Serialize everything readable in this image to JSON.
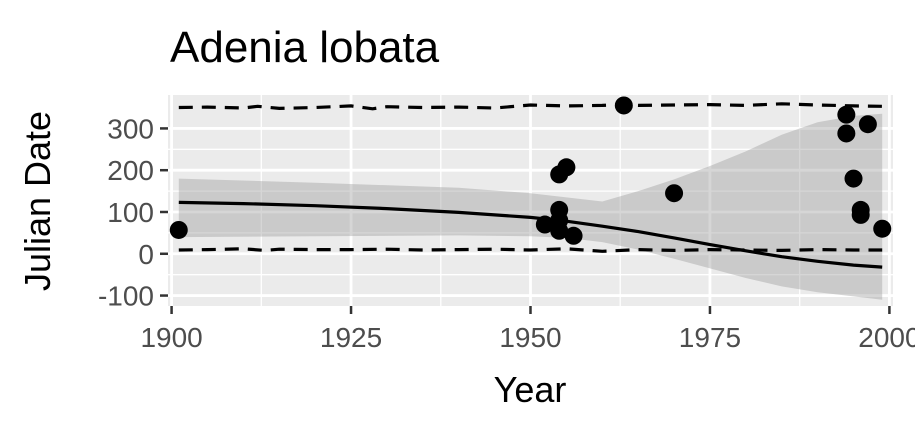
{
  "chart_data": {
    "type": "scatter",
    "title": "Adenia lobata",
    "xlabel": "Year",
    "ylabel": "Julian Date",
    "xlim": [
      1899.5,
      2000.5
    ],
    "ylim": [
      -125,
      380
    ],
    "xticks": [
      1900,
      1925,
      1950,
      1975,
      2000
    ],
    "yticks": [
      -100,
      0,
      100,
      200,
      300
    ],
    "x_tick_labels": [
      "1900",
      "1925",
      "1950",
      "1975",
      "2000"
    ],
    "y_tick_labels": [
      "-100",
      "0",
      "100",
      "200",
      "300"
    ],
    "grid": true,
    "points": [
      {
        "x": 1901,
        "y": 57
      },
      {
        "x": 1952,
        "y": 70
      },
      {
        "x": 1954,
        "y": 55
      },
      {
        "x": 1954,
        "y": 80
      },
      {
        "x": 1954,
        "y": 105
      },
      {
        "x": 1954,
        "y": 190
      },
      {
        "x": 1955,
        "y": 207
      },
      {
        "x": 1956,
        "y": 43
      },
      {
        "x": 1963,
        "y": 355
      },
      {
        "x": 1970,
        "y": 145
      },
      {
        "x": 1994,
        "y": 288
      },
      {
        "x": 1994,
        "y": 333
      },
      {
        "x": 1995,
        "y": 180
      },
      {
        "x": 1996,
        "y": 93
      },
      {
        "x": 1996,
        "y": 105
      },
      {
        "x": 1997,
        "y": 310
      },
      {
        "x": 1999,
        "y": 60
      }
    ],
    "trend_line": {
      "x": [
        1901,
        1910,
        1920,
        1930,
        1940,
        1950,
        1955,
        1960,
        1965,
        1970,
        1975,
        1980,
        1985,
        1990,
        1995,
        1999
      ],
      "y": [
        123,
        120,
        115,
        108,
        99,
        87,
        78,
        66,
        53,
        38,
        22,
        7,
        -7,
        -18,
        -27,
        -32
      ]
    },
    "confidence_band": {
      "x": [
        1901,
        1920,
        1940,
        1950,
        1955,
        1960,
        1965,
        1970,
        1975,
        1980,
        1985,
        1990,
        1995,
        1999
      ],
      "lower": [
        40,
        42,
        44,
        42,
        38,
        28,
        10,
        -12,
        -35,
        -58,
        -78,
        -92,
        -102,
        -110
      ],
      "upper": [
        180,
        170,
        158,
        145,
        135,
        125,
        150,
        178,
        210,
        245,
        285,
        315,
        330,
        335
      ]
    },
    "upper_dashed": {
      "x": [
        1901,
        1905,
        1910,
        1912,
        1915,
        1920,
        1925,
        1928,
        1930,
        1935,
        1940,
        1945,
        1950,
        1955,
        1960,
        1963,
        1965,
        1970,
        1975,
        1980,
        1985,
        1990,
        1995,
        1999
      ],
      "y": [
        350,
        351,
        349,
        353,
        348,
        350,
        354,
        347,
        352,
        350,
        351,
        349,
        356,
        354,
        355,
        357,
        355,
        356,
        357,
        355,
        359,
        356,
        354,
        353
      ]
    },
    "lower_dashed": {
      "x": [
        1901,
        1905,
        1910,
        1913,
        1915,
        1920,
        1925,
        1930,
        1935,
        1940,
        1945,
        1950,
        1955,
        1960,
        1965,
        1970,
        1975,
        1980,
        1985,
        1990,
        1995,
        1999
      ],
      "y": [
        9,
        10,
        12,
        8,
        11,
        10,
        10,
        11,
        9,
        10,
        11,
        9,
        12,
        6,
        10,
        8,
        10,
        9,
        8,
        10,
        9,
        9
      ]
    }
  }
}
